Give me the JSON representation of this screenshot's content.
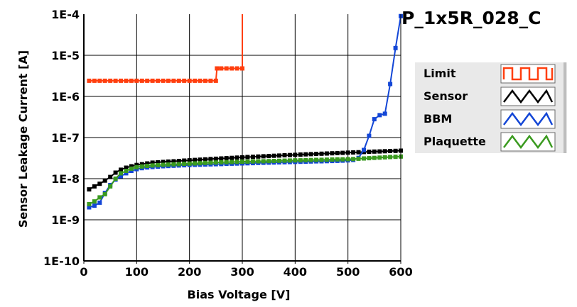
{
  "chart_data": {
    "type": "line",
    "title": "P_1x5R_028_C",
    "xlabel": "Bias Voltage [V]",
    "ylabel": "Sensor Leakage Current [A]",
    "xlim": [
      0,
      600
    ],
    "ylim": [
      1e-10,
      0.0001
    ],
    "yscale": "log",
    "grid": true,
    "legend_position": "right",
    "x_ticks": [
      "0",
      "100",
      "200",
      "300",
      "400",
      "500",
      "600"
    ],
    "y_ticks": [
      "1E-10",
      "1E-9",
      "1E-8",
      "1E-7",
      "1E-6",
      "1E-5",
      "1E-4"
    ],
    "series": [
      {
        "name": "Limit",
        "color": "#ff3f0f",
        "x": [
          10,
          20,
          30,
          40,
          50,
          60,
          70,
          80,
          90,
          100,
          110,
          120,
          130,
          140,
          150,
          160,
          170,
          180,
          190,
          200,
          210,
          220,
          230,
          240,
          250,
          252,
          260,
          270,
          280,
          290,
          300,
          300
        ],
        "y": [
          2.4e-06,
          2.4e-06,
          2.4e-06,
          2.4e-06,
          2.4e-06,
          2.4e-06,
          2.4e-06,
          2.4e-06,
          2.4e-06,
          2.4e-06,
          2.4e-06,
          2.4e-06,
          2.4e-06,
          2.4e-06,
          2.4e-06,
          2.4e-06,
          2.4e-06,
          2.4e-06,
          2.4e-06,
          2.4e-06,
          2.4e-06,
          2.4e-06,
          2.4e-06,
          2.4e-06,
          2.4e-06,
          4.8e-06,
          4.8e-06,
          4.8e-06,
          4.8e-06,
          4.8e-06,
          4.8e-06,
          0.0001
        ]
      },
      {
        "name": "Sensor",
        "color": "#000000",
        "x": [
          10,
          20,
          30,
          40,
          50,
          60,
          70,
          80,
          90,
          100,
          110,
          120,
          130,
          140,
          150,
          160,
          170,
          180,
          190,
          200,
          210,
          220,
          230,
          240,
          250,
          260,
          270,
          280,
          290,
          300,
          310,
          320,
          330,
          340,
          350,
          360,
          370,
          380,
          390,
          400,
          410,
          420,
          430,
          440,
          450,
          460,
          470,
          480,
          490,
          500,
          510,
          520,
          530,
          540,
          550,
          560,
          570,
          580,
          590,
          600
        ],
        "y": [
          5.5e-09,
          6.5e-09,
          7.5e-09,
          9e-09,
          1.1e-08,
          1.4e-08,
          1.65e-08,
          1.85e-08,
          2e-08,
          2.15e-08,
          2.25e-08,
          2.35e-08,
          2.45e-08,
          2.5e-08,
          2.55e-08,
          2.6e-08,
          2.65e-08,
          2.7e-08,
          2.75e-08,
          2.8e-08,
          2.85e-08,
          2.9e-08,
          2.95e-08,
          3e-08,
          3.05e-08,
          3.1e-08,
          3.15e-08,
          3.2e-08,
          3.25e-08,
          3.3e-08,
          3.35e-08,
          3.4e-08,
          3.45e-08,
          3.5e-08,
          3.55e-08,
          3.6e-08,
          3.65e-08,
          3.7e-08,
          3.75e-08,
          3.8e-08,
          3.85e-08,
          3.9e-08,
          3.95e-08,
          4e-08,
          4.05e-08,
          4.1e-08,
          4.15e-08,
          4.2e-08,
          4.25e-08,
          4.3e-08,
          4.35e-08,
          4.4e-08,
          4.45e-08,
          4.5e-08,
          4.55e-08,
          4.6e-08,
          4.65e-08,
          4.7e-08,
          4.75e-08,
          4.8e-08
        ]
      },
      {
        "name": "BBM",
        "color": "#1346d6",
        "x": [
          10,
          20,
          30,
          40,
          50,
          60,
          70,
          80,
          90,
          100,
          110,
          120,
          130,
          140,
          150,
          160,
          170,
          180,
          190,
          200,
          210,
          220,
          230,
          240,
          250,
          260,
          270,
          280,
          290,
          300,
          310,
          320,
          330,
          340,
          350,
          360,
          370,
          380,
          390,
          400,
          410,
          420,
          430,
          440,
          450,
          460,
          470,
          480,
          490,
          500,
          510,
          520,
          530,
          540,
          550,
          560,
          570,
          580,
          590,
          600
        ],
        "y": [
          2e-09,
          2.2e-09,
          2.6e-09,
          4.5e-09,
          7e-09,
          9.5e-09,
          1.15e-08,
          1.35e-08,
          1.55e-08,
          1.7e-08,
          1.8e-08,
          1.87e-08,
          1.92e-08,
          1.96e-08,
          2e-08,
          2.03e-08,
          2.06e-08,
          2.09e-08,
          2.12e-08,
          2.15e-08,
          2.17e-08,
          2.19e-08,
          2.21e-08,
          2.23e-08,
          2.25e-08,
          2.27e-08,
          2.29e-08,
          2.31e-08,
          2.33e-08,
          2.35e-08,
          2.37e-08,
          2.39e-08,
          2.41e-08,
          2.43e-08,
          2.45e-08,
          2.47e-08,
          2.49e-08,
          2.51e-08,
          2.53e-08,
          2.55e-08,
          2.57e-08,
          2.59e-08,
          2.61e-08,
          2.63e-08,
          2.65e-08,
          2.67e-08,
          2.69e-08,
          2.71e-08,
          2.74e-08,
          2.78e-08,
          2.85e-08,
          3.2e-08,
          5e-08,
          1.1e-07,
          2.8e-07,
          3.5e-07,
          3.8e-07,
          2e-06,
          1.5e-05,
          9e-05
        ]
      },
      {
        "name": "Plaquette",
        "color": "#3a9a1f",
        "x": [
          10,
          20,
          30,
          40,
          50,
          60,
          70,
          80,
          90,
          100,
          110,
          120,
          130,
          140,
          150,
          160,
          170,
          180,
          190,
          200,
          210,
          220,
          230,
          240,
          250,
          260,
          270,
          280,
          290,
          300,
          310,
          320,
          330,
          340,
          350,
          360,
          370,
          380,
          390,
          400,
          410,
          420,
          430,
          440,
          450,
          460,
          470,
          480,
          490,
          500,
          510,
          520,
          530,
          540,
          550,
          560,
          570,
          580,
          590,
          600
        ],
        "y": [
          2.4e-09,
          2.8e-09,
          3.5e-09,
          4.2e-09,
          6.5e-09,
          1e-08,
          1.35e-08,
          1.55e-08,
          1.75e-08,
          1.9e-08,
          1.98e-08,
          2.04e-08,
          2.09e-08,
          2.13e-08,
          2.17e-08,
          2.2e-08,
          2.23e-08,
          2.26e-08,
          2.29e-08,
          2.32e-08,
          2.35e-08,
          2.38e-08,
          2.41e-08,
          2.44e-08,
          2.47e-08,
          2.5e-08,
          2.52e-08,
          2.54e-08,
          2.56e-08,
          2.58e-08,
          2.6e-08,
          2.62e-08,
          2.64e-08,
          2.66e-08,
          2.68e-08,
          2.7e-08,
          2.72e-08,
          2.74e-08,
          2.76e-08,
          2.78e-08,
          2.8e-08,
          2.82e-08,
          2.84e-08,
          2.86e-08,
          2.88e-08,
          2.9e-08,
          2.92e-08,
          2.94e-08,
          2.96e-08,
          2.98e-08,
          3e-08,
          3.05e-08,
          3.1e-08,
          3.15e-08,
          3.2e-08,
          3.25e-08,
          3.3e-08,
          3.35e-08,
          3.4e-08,
          3.45e-08
        ]
      }
    ]
  },
  "legend": {
    "items": [
      {
        "label": "Limit",
        "color": "#ff3f0f",
        "icon": "square-wave-icon"
      },
      {
        "label": "Sensor",
        "color": "#000000",
        "icon": "triangle-wave-icon"
      },
      {
        "label": "BBM",
        "color": "#1346d6",
        "icon": "triangle-wave-icon"
      },
      {
        "label": "Plaquette",
        "color": "#3a9a1f",
        "icon": "triangle-wave-icon"
      }
    ]
  }
}
